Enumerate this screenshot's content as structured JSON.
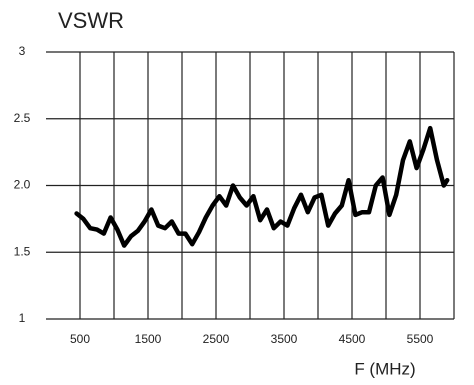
{
  "chart_data": {
    "type": "line",
    "title": "VSWR",
    "x_label": "F (MHz)",
    "x": [
      450,
      550,
      650,
      750,
      850,
      950,
      1050,
      1150,
      1250,
      1350,
      1450,
      1550,
      1650,
      1750,
      1850,
      1950,
      2050,
      2150,
      2250,
      2350,
      2450,
      2550,
      2650,
      2750,
      2850,
      2950,
      3050,
      3150,
      3250,
      3350,
      3450,
      3550,
      3650,
      3750,
      3850,
      3950,
      4050,
      4150,
      4250,
      4350,
      4450,
      4550,
      4650,
      4750,
      4850,
      4950,
      5050,
      5150,
      5250,
      5350,
      5450,
      5550,
      5650,
      5750,
      5850,
      5900
    ],
    "series": [
      {
        "name": "VSWR",
        "color": "#000000",
        "values": [
          1.79,
          1.75,
          1.68,
          1.67,
          1.64,
          1.76,
          1.67,
          1.55,
          1.62,
          1.66,
          1.73,
          1.82,
          1.7,
          1.68,
          1.73,
          1.64,
          1.64,
          1.56,
          1.65,
          1.76,
          1.85,
          1.92,
          1.85,
          2.0,
          1.91,
          1.85,
          1.92,
          1.74,
          1.82,
          1.68,
          1.73,
          1.7,
          1.83,
          1.93,
          1.8,
          1.91,
          1.93,
          1.7,
          1.79,
          1.85,
          2.04,
          1.78,
          1.8,
          1.8,
          2.0,
          2.06,
          1.78,
          1.93,
          2.19,
          2.33,
          2.13,
          2.27,
          2.43,
          2.19,
          2.0,
          2.04
        ]
      }
    ],
    "xlim": [
      0,
      6000
    ],
    "xticks": [
      500,
      1500,
      2500,
      3500,
      4500,
      5500
    ],
    "ylim": [
      1,
      3
    ],
    "yticks": [
      1,
      1.5,
      {
        "value": 2,
        "label": "2.0"
      },
      2.5,
      3
    ],
    "grid": true
  }
}
